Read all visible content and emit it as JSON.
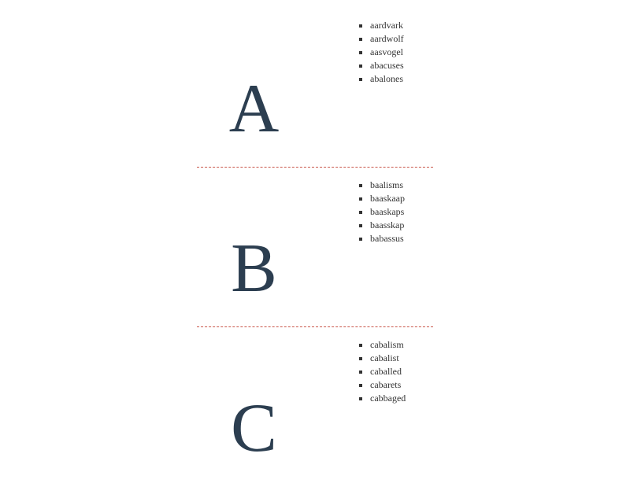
{
  "sections": [
    {
      "letter": "A",
      "words": [
        "aardvark",
        "aardwolf",
        "aasvogel",
        "abacuses",
        "abalones"
      ]
    },
    {
      "letter": "B",
      "words": [
        "baalisms",
        "baaskaap",
        "baaskaps",
        "baasskap",
        "babassus"
      ]
    },
    {
      "letter": "C",
      "words": [
        "cabalism",
        "cabalist",
        "caballed",
        "cabarets",
        "cabbaged"
      ]
    }
  ],
  "colors": {
    "letter": "#2c3e50",
    "text": "#333333",
    "divider": "#c0392b"
  }
}
